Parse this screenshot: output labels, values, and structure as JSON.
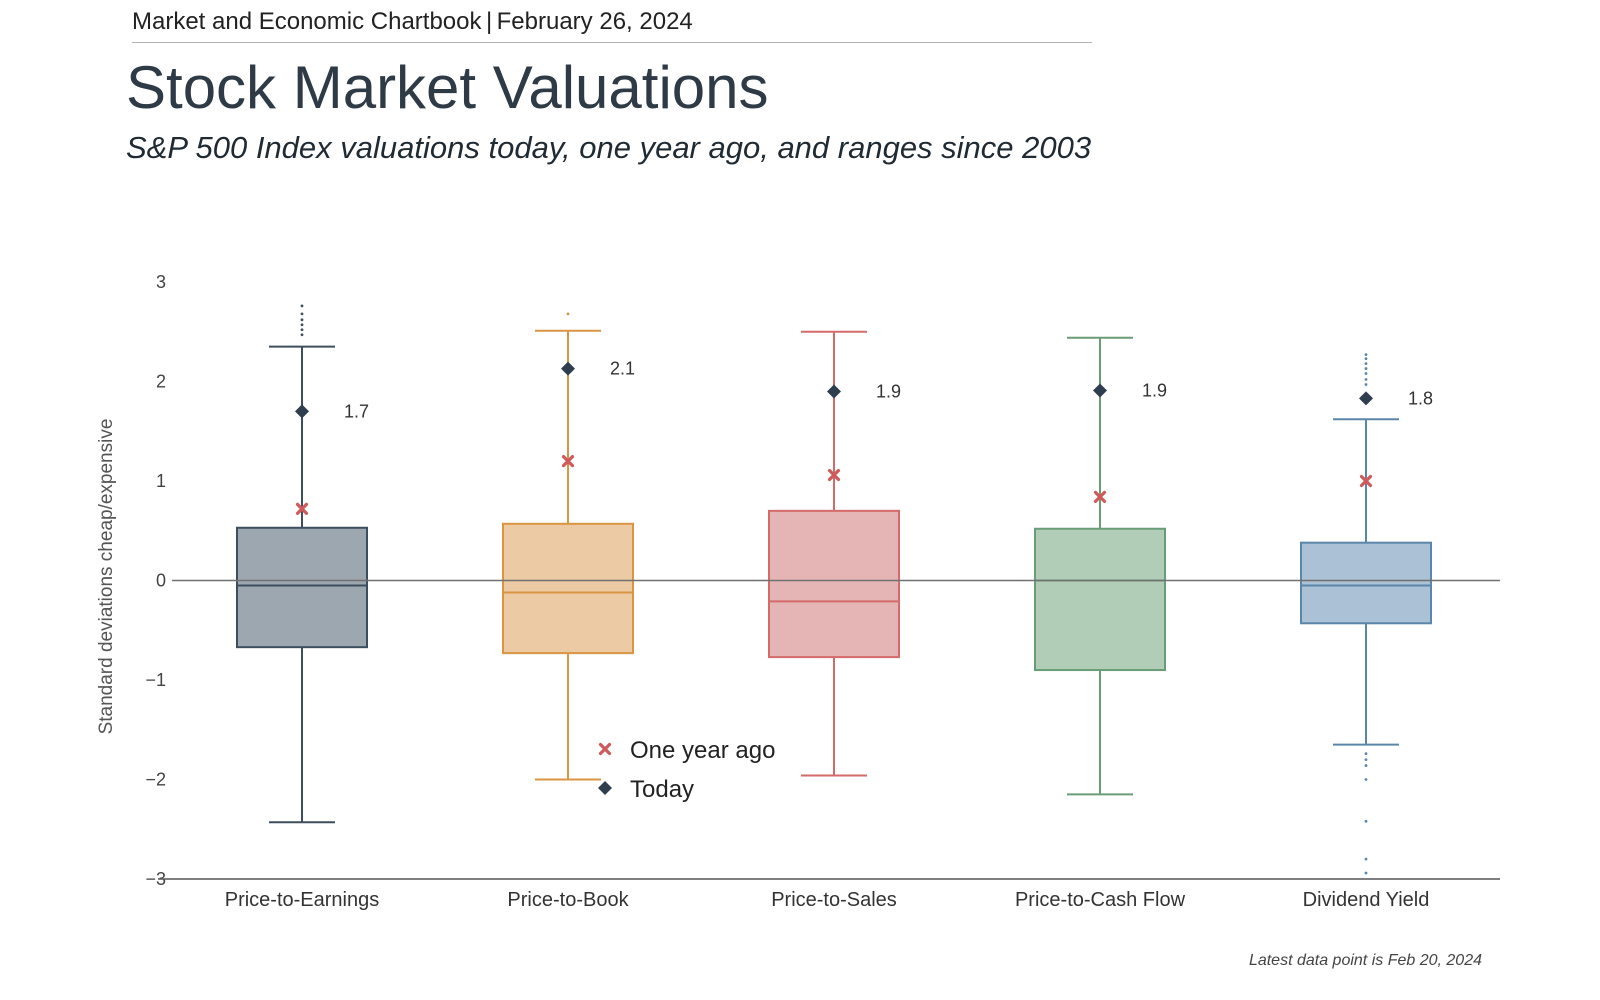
{
  "header": {
    "publication": "Market and Economic Chartbook",
    "separator": "|",
    "date": "February 26, 2024"
  },
  "title": "Stock Market Valuations",
  "subtitle": "S&P 500 Index valuations today, one year ago, and ranges since 2003",
  "footnote": "Latest data point is Feb 20, 2024",
  "chart_data": {
    "type": "box",
    "ylabel": "Standard deviations cheap/expensive",
    "xlabel": "",
    "ylim": [
      -3,
      3
    ],
    "yticks": [
      3,
      2,
      1,
      0,
      -1,
      -2,
      -3
    ],
    "ytick_labels": [
      "3",
      "2",
      "1",
      "0",
      "−1",
      "−2",
      "−3"
    ],
    "legend": {
      "placement": "lower-center",
      "one_year_ago": "One year ago",
      "today": "Today"
    },
    "categories": [
      {
        "name": "Price-to-Earnings",
        "color": "#3d4f5e",
        "fill": "#9da7b0",
        "whisker_low": -2.43,
        "q1": -0.67,
        "median": -0.05,
        "q3": 0.53,
        "whisker_high": 2.35,
        "outliers": [
          2.47,
          2.52,
          2.57,
          2.62,
          2.68,
          2.76
        ],
        "one_year_ago": 0.72,
        "today": 1.7,
        "today_label": "1.7"
      },
      {
        "name": "Price-to-Book",
        "color": "#d99444",
        "fill": "#eccaa4",
        "whisker_low": -2.0,
        "q1": -0.73,
        "median": -0.12,
        "q3": 0.57,
        "whisker_high": 2.51,
        "outliers": [
          2.68
        ],
        "one_year_ago": 1.2,
        "today": 2.13,
        "today_label": "2.1"
      },
      {
        "name": "Price-to-Sales",
        "color": "#d46a6a",
        "fill": "#e5b4b4",
        "whisker_low": -1.96,
        "q1": -0.77,
        "median": -0.21,
        "q3": 0.7,
        "whisker_high": 2.5,
        "outliers": [],
        "one_year_ago": 1.06,
        "today": 1.9,
        "today_label": "1.9"
      },
      {
        "name": "Price-to-Cash Flow",
        "color": "#6a9c77",
        "fill": "#b1cdb8",
        "whisker_low": -2.15,
        "q1": -0.9,
        "median": 0.0,
        "q3": 0.52,
        "whisker_high": 2.44,
        "outliers": [],
        "one_year_ago": 0.84,
        "today": 1.91,
        "today_label": "1.9"
      },
      {
        "name": "Dividend Yield",
        "color": "#5b86aa",
        "fill": "#abc1d6",
        "whisker_low": -1.65,
        "q1": -0.43,
        "median": -0.05,
        "q3": 0.38,
        "whisker_high": 1.62,
        "outliers": [
          2.27,
          2.23,
          2.18,
          2.13,
          2.08,
          2.02,
          1.97,
          -1.74,
          -1.8,
          -1.86,
          -2.0,
          -2.42,
          -2.8,
          -2.94
        ],
        "one_year_ago": 1.0,
        "today": 1.83,
        "today_label": "1.8"
      }
    ],
    "marker_colors": {
      "today": "#2e3e4e",
      "one_year_ago": "#cf5a5a"
    }
  }
}
